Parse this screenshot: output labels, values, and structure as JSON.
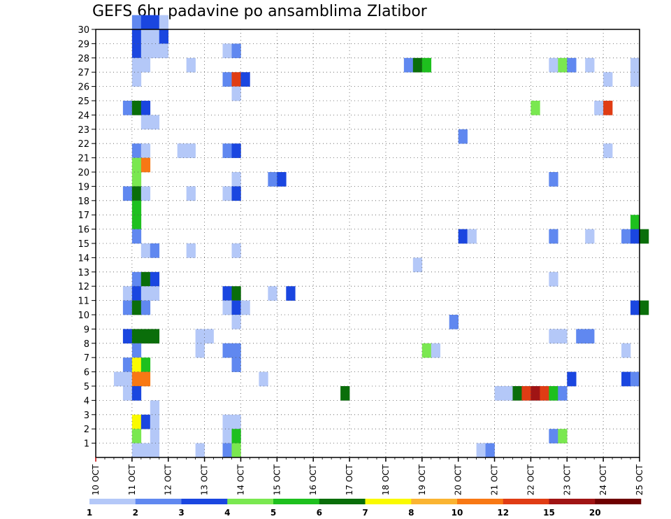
{
  "chart_data": {
    "type": "heatmap",
    "title": "GEFS 6hr padavine po ansamblima Zlatibor",
    "xlabel": "",
    "ylabel": "",
    "x_ticks": [
      "10 OCT",
      "11 OCT",
      "12 OCT",
      "13 OCT",
      "14 OCT",
      "15 OCT",
      "16 OCT",
      "17 OCT",
      "18 OCT",
      "19 OCT",
      "20 OCT",
      "21 OCT",
      "22 OCT",
      "23 OCT",
      "24 OCT",
      "25 OCT"
    ],
    "xlim": [
      "10 OCT 00Z",
      "25 OCT 00Z"
    ],
    "y_ticks": [
      1,
      2,
      3,
      4,
      5,
      6,
      7,
      8,
      9,
      10,
      11,
      12,
      13,
      14,
      15,
      16,
      17,
      18,
      19,
      20,
      21,
      22,
      23,
      24,
      25,
      26,
      27,
      28,
      29,
      30
    ],
    "ylim": [
      0,
      30
    ],
    "grid": true,
    "colorbar": {
      "placement": "bottom",
      "levels": [
        1,
        2,
        3,
        4,
        5,
        6,
        7,
        8,
        10,
        12,
        15,
        20
      ],
      "colors": [
        "#b4c8f8",
        "#6088f0",
        "#1a46e0",
        "#7ae850",
        "#1ec01e",
        "#0a6e0a",
        "#fafa00",
        "#fab432",
        "#f87814",
        "#e03c14",
        "#a01414",
        "#6e0000"
      ]
    },
    "cells": [
      {
        "member": 30,
        "day": "11 OCT",
        "step": 0,
        "value": 2
      },
      {
        "member": 30,
        "day": "11 OCT",
        "step": 1,
        "value": 3
      },
      {
        "member": 30,
        "day": "11 OCT",
        "step": 2,
        "value": 3
      },
      {
        "member": 30,
        "day": "11 OCT",
        "step": 3,
        "value": 1
      },
      {
        "member": 29,
        "day": "11 OCT",
        "step": 0,
        "value": 3
      },
      {
        "member": 29,
        "day": "11 OCT",
        "step": 1,
        "value": 1
      },
      {
        "member": 29,
        "day": "11 OCT",
        "step": 2,
        "value": 1
      },
      {
        "member": 29,
        "day": "11 OCT",
        "step": 3,
        "value": 3
      },
      {
        "member": 28,
        "day": "11 OCT",
        "step": 0,
        "value": 3
      },
      {
        "member": 28,
        "day": "11 OCT",
        "step": 1,
        "value": 1
      },
      {
        "member": 28,
        "day": "11 OCT",
        "step": 2,
        "value": 1
      },
      {
        "member": 28,
        "day": "11 OCT",
        "step": 3,
        "value": 1
      },
      {
        "member": 28,
        "day": "13 OCT",
        "step": 2,
        "value": 1
      },
      {
        "member": 28,
        "day": "13 OCT",
        "step": 3,
        "value": 2
      },
      {
        "member": 27,
        "day": "11 OCT",
        "step": 0,
        "value": 1
      },
      {
        "member": 27,
        "day": "11 OCT",
        "step": 1,
        "value": 1
      },
      {
        "member": 27,
        "day": "12 OCT",
        "step": 2,
        "value": 1
      },
      {
        "member": 27,
        "day": "18 OCT",
        "step": 2,
        "value": 2
      },
      {
        "member": 27,
        "day": "18 OCT",
        "step": 3,
        "value": 6
      },
      {
        "member": 27,
        "day": "19 OCT",
        "step": 0,
        "value": 5
      },
      {
        "member": 27,
        "day": "22 OCT",
        "step": 2,
        "value": 1
      },
      {
        "member": 27,
        "day": "22 OCT",
        "step": 3,
        "value": 4
      },
      {
        "member": 27,
        "day": "23 OCT",
        "step": 0,
        "value": 2
      },
      {
        "member": 27,
        "day": "23 OCT",
        "step": 2,
        "value": 1
      },
      {
        "member": 27,
        "day": "24 OCT",
        "step": 3,
        "value": 1
      },
      {
        "member": 26,
        "day": "11 OCT",
        "step": 0,
        "value": 1
      },
      {
        "member": 26,
        "day": "13 OCT",
        "step": 2,
        "value": 2
      },
      {
        "member": 26,
        "day": "13 OCT",
        "step": 3,
        "value": 12
      },
      {
        "member": 26,
        "day": "14 OCT",
        "step": 0,
        "value": 3
      },
      {
        "member": 26,
        "day": "24 OCT",
        "step": 0,
        "value": 1
      },
      {
        "member": 26,
        "day": "24 OCT",
        "step": 3,
        "value": 1
      },
      {
        "member": 25,
        "day": "13 OCT",
        "step": 3,
        "value": 1
      },
      {
        "member": 24,
        "day": "10 OCT",
        "step": 3,
        "value": 2
      },
      {
        "member": 24,
        "day": "11 OCT",
        "step": 0,
        "value": 6
      },
      {
        "member": 24,
        "day": "11 OCT",
        "step": 1,
        "value": 3
      },
      {
        "member": 24,
        "day": "22 OCT",
        "step": 0,
        "value": 4
      },
      {
        "member": 24,
        "day": "23 OCT",
        "step": 3,
        "value": 1
      },
      {
        "member": 24,
        "day": "24 OCT",
        "step": 0,
        "value": 12
      },
      {
        "member": 23,
        "day": "11 OCT",
        "step": 1,
        "value": 1
      },
      {
        "member": 23,
        "day": "11 OCT",
        "step": 2,
        "value": 1
      },
      {
        "member": 22,
        "day": "20 OCT",
        "step": 0,
        "value": 2
      },
      {
        "member": 21,
        "day": "11 OCT",
        "step": 0,
        "value": 2
      },
      {
        "member": 21,
        "day": "11 OCT",
        "step": 1,
        "value": 1
      },
      {
        "member": 21,
        "day": "12 OCT",
        "step": 1,
        "value": 1
      },
      {
        "member": 21,
        "day": "12 OCT",
        "step": 2,
        "value": 1
      },
      {
        "member": 21,
        "day": "13 OCT",
        "step": 2,
        "value": 2
      },
      {
        "member": 21,
        "day": "13 OCT",
        "step": 3,
        "value": 3
      },
      {
        "member": 21,
        "day": "24 OCT",
        "step": 0,
        "value": 1
      },
      {
        "member": 20,
        "day": "11 OCT",
        "step": 0,
        "value": 4
      },
      {
        "member": 20,
        "day": "11 OCT",
        "step": 1,
        "value": 10
      },
      {
        "member": 19,
        "day": "11 OCT",
        "step": 0,
        "value": 4
      },
      {
        "member": 19,
        "day": "13 OCT",
        "step": 3,
        "value": 1
      },
      {
        "member": 19,
        "day": "14 OCT",
        "step": 3,
        "value": 2
      },
      {
        "member": 19,
        "day": "15 OCT",
        "step": 0,
        "value": 3
      },
      {
        "member": 19,
        "day": "22 OCT",
        "step": 2,
        "value": 2
      },
      {
        "member": 18,
        "day": "10 OCT",
        "step": 3,
        "value": 2
      },
      {
        "member": 18,
        "day": "11 OCT",
        "step": 0,
        "value": 6
      },
      {
        "member": 18,
        "day": "11 OCT",
        "step": 1,
        "value": 1
      },
      {
        "member": 18,
        "day": "12 OCT",
        "step": 2,
        "value": 1
      },
      {
        "member": 18,
        "day": "13 OCT",
        "step": 2,
        "value": 1
      },
      {
        "member": 18,
        "day": "13 OCT",
        "step": 3,
        "value": 3
      },
      {
        "member": 17,
        "day": "11 OCT",
        "step": 0,
        "value": 5
      },
      {
        "member": 16,
        "day": "11 OCT",
        "step": 0,
        "value": 5
      },
      {
        "member": 16,
        "day": "24 OCT",
        "step": 3,
        "value": 5
      },
      {
        "member": 15,
        "day": "11 OCT",
        "step": 0,
        "value": 2
      },
      {
        "member": 15,
        "day": "20 OCT",
        "step": 0,
        "value": 3
      },
      {
        "member": 15,
        "day": "20 OCT",
        "step": 1,
        "value": 1
      },
      {
        "member": 15,
        "day": "22 OCT",
        "step": 2,
        "value": 2
      },
      {
        "member": 15,
        "day": "23 OCT",
        "step": 2,
        "value": 1
      },
      {
        "member": 15,
        "day": "24 OCT",
        "step": 2,
        "value": 2
      },
      {
        "member": 15,
        "day": "24 OCT",
        "step": 3,
        "value": 3
      },
      {
        "member": 15,
        "day": "25 OCT",
        "step": 0,
        "value": 6
      },
      {
        "member": 14,
        "day": "11 OCT",
        "step": 1,
        "value": 1
      },
      {
        "member": 14,
        "day": "11 OCT",
        "step": 2,
        "value": 2
      },
      {
        "member": 14,
        "day": "12 OCT",
        "step": 2,
        "value": 1
      },
      {
        "member": 14,
        "day": "13 OCT",
        "step": 3,
        "value": 1
      },
      {
        "member": 13,
        "day": "18 OCT",
        "step": 3,
        "value": 1
      },
      {
        "member": 12,
        "day": "11 OCT",
        "step": 0,
        "value": 2
      },
      {
        "member": 12,
        "day": "11 OCT",
        "step": 1,
        "value": 6
      },
      {
        "member": 12,
        "day": "11 OCT",
        "step": 2,
        "value": 3
      },
      {
        "member": 12,
        "day": "22 OCT",
        "step": 2,
        "value": 1
      },
      {
        "member": 11,
        "day": "10 OCT",
        "step": 3,
        "value": 1
      },
      {
        "member": 11,
        "day": "11 OCT",
        "step": 0,
        "value": 3
      },
      {
        "member": 11,
        "day": "11 OCT",
        "step": 1,
        "value": 1
      },
      {
        "member": 11,
        "day": "11 OCT",
        "step": 2,
        "value": 1
      },
      {
        "member": 11,
        "day": "13 OCT",
        "step": 2,
        "value": 3
      },
      {
        "member": 11,
        "day": "13 OCT",
        "step": 3,
        "value": 6
      },
      {
        "member": 11,
        "day": "14 OCT",
        "step": 3,
        "value": 1
      },
      {
        "member": 11,
        "day": "15 OCT",
        "step": 1,
        "value": 3
      },
      {
        "member": 10,
        "day": "10 OCT",
        "step": 3,
        "value": 2
      },
      {
        "member": 10,
        "day": "11 OCT",
        "step": 0,
        "value": 6
      },
      {
        "member": 10,
        "day": "11 OCT",
        "step": 1,
        "value": 2
      },
      {
        "member": 10,
        "day": "13 OCT",
        "step": 2,
        "value": 1
      },
      {
        "member": 10,
        "day": "13 OCT",
        "step": 3,
        "value": 3
      },
      {
        "member": 10,
        "day": "14 OCT",
        "step": 0,
        "value": 1
      },
      {
        "member": 10,
        "day": "24 OCT",
        "step": 3,
        "value": 3
      },
      {
        "member": 10,
        "day": "25 OCT",
        "step": 0,
        "value": 6
      },
      {
        "member": 9,
        "day": "13 OCT",
        "step": 3,
        "value": 1
      },
      {
        "member": 9,
        "day": "19 OCT",
        "step": 3,
        "value": 2
      },
      {
        "member": 8,
        "day": "10 OCT",
        "step": 3,
        "value": 3
      },
      {
        "member": 8,
        "day": "11 OCT",
        "step": 0,
        "value": 6
      },
      {
        "member": 8,
        "day": "11 OCT",
        "step": 1,
        "value": 6
      },
      {
        "member": 8,
        "day": "11 OCT",
        "step": 2,
        "value": 6
      },
      {
        "member": 8,
        "day": "12 OCT",
        "step": 3,
        "value": 1
      },
      {
        "member": 8,
        "day": "13 OCT",
        "step": 0,
        "value": 1
      },
      {
        "member": 8,
        "day": "22 OCT",
        "step": 2,
        "value": 1
      },
      {
        "member": 8,
        "day": "22 OCT",
        "step": 3,
        "value": 1
      },
      {
        "member": 8,
        "day": "23 OCT",
        "step": 1,
        "value": 2
      },
      {
        "member": 8,
        "day": "23 OCT",
        "step": 2,
        "value": 2
      },
      {
        "member": 7,
        "day": "11 OCT",
        "step": 0,
        "value": 2
      },
      {
        "member": 7,
        "day": "12 OCT",
        "step": 3,
        "value": 1
      },
      {
        "member": 7,
        "day": "13 OCT",
        "step": 2,
        "value": 2
      },
      {
        "member": 7,
        "day": "13 OCT",
        "step": 3,
        "value": 2
      },
      {
        "member": 7,
        "day": "19 OCT",
        "step": 0,
        "value": 4
      },
      {
        "member": 7,
        "day": "19 OCT",
        "step": 1,
        "value": 1
      },
      {
        "member": 7,
        "day": "24 OCT",
        "step": 2,
        "value": 1
      },
      {
        "member": 6,
        "day": "10 OCT",
        "step": 3,
        "value": 2
      },
      {
        "member": 6,
        "day": "11 OCT",
        "step": 0,
        "value": 7
      },
      {
        "member": 6,
        "day": "11 OCT",
        "step": 1,
        "value": 5
      },
      {
        "member": 6,
        "day": "13 OCT",
        "step": 3,
        "value": 2
      },
      {
        "member": 5,
        "day": "10 OCT",
        "step": 2,
        "value": 1
      },
      {
        "member": 5,
        "day": "10 OCT",
        "step": 3,
        "value": 1
      },
      {
        "member": 5,
        "day": "11 OCT",
        "step": 0,
        "value": 10
      },
      {
        "member": 5,
        "day": "11 OCT",
        "step": 1,
        "value": 10
      },
      {
        "member": 5,
        "day": "14 OCT",
        "step": 2,
        "value": 1
      },
      {
        "member": 5,
        "day": "23 OCT",
        "step": 0,
        "value": 3
      },
      {
        "member": 5,
        "day": "24 OCT",
        "step": 2,
        "value": 3
      },
      {
        "member": 5,
        "day": "24 OCT",
        "step": 3,
        "value": 2
      },
      {
        "member": 4,
        "day": "10 OCT",
        "step": 3,
        "value": 1
      },
      {
        "member": 4,
        "day": "11 OCT",
        "step": 0,
        "value": 3
      },
      {
        "member": 4,
        "day": "16 OCT",
        "step": 3,
        "value": 6
      },
      {
        "member": 4,
        "day": "21 OCT",
        "step": 0,
        "value": 1
      },
      {
        "member": 4,
        "day": "21 OCT",
        "step": 1,
        "value": 1
      },
      {
        "member": 4,
        "day": "21 OCT",
        "step": 2,
        "value": 6
      },
      {
        "member": 4,
        "day": "21 OCT",
        "step": 3,
        "value": 12
      },
      {
        "member": 4,
        "day": "22 OCT",
        "step": 0,
        "value": 15
      },
      {
        "member": 4,
        "day": "22 OCT",
        "step": 1,
        "value": 12
      },
      {
        "member": 4,
        "day": "22 OCT",
        "step": 2,
        "value": 5
      },
      {
        "member": 4,
        "day": "22 OCT",
        "step": 3,
        "value": 2
      },
      {
        "member": 3,
        "day": "11 OCT",
        "step": 2,
        "value": 1
      },
      {
        "member": 2,
        "day": "11 OCT",
        "step": 0,
        "value": 7
      },
      {
        "member": 2,
        "day": "11 OCT",
        "step": 1,
        "value": 3
      },
      {
        "member": 2,
        "day": "11 OCT",
        "step": 2,
        "value": 1
      },
      {
        "member": 2,
        "day": "13 OCT",
        "step": 2,
        "value": 1
      },
      {
        "member": 2,
        "day": "13 OCT",
        "step": 3,
        "value": 1
      },
      {
        "member": 1,
        "day": "11 OCT",
        "step": 0,
        "value": 4
      },
      {
        "member": 1,
        "day": "11 OCT",
        "step": 2,
        "value": 1
      },
      {
        "member": 1,
        "day": "13 OCT",
        "step": 2,
        "value": 1
      },
      {
        "member": 1,
        "day": "13 OCT",
        "step": 3,
        "value": 5
      },
      {
        "member": 1,
        "day": "22 OCT",
        "step": 2,
        "value": 2
      },
      {
        "member": 1,
        "day": "22 OCT",
        "step": 3,
        "value": 4
      },
      {
        "member": 0,
        "day": "11 OCT",
        "step": 0,
        "value": 1
      },
      {
        "member": 0,
        "day": "11 OCT",
        "step": 1,
        "value": 1
      },
      {
        "member": 0,
        "day": "11 OCT",
        "step": 2,
        "value": 1
      },
      {
        "member": 0,
        "day": "12 OCT",
        "step": 3,
        "value": 1
      },
      {
        "member": 0,
        "day": "13 OCT",
        "step": 2,
        "value": 2
      },
      {
        "member": 0,
        "day": "13 OCT",
        "step": 3,
        "value": 4
      },
      {
        "member": 0,
        "day": "20 OCT",
        "step": 2,
        "value": 1
      },
      {
        "member": 0,
        "day": "20 OCT",
        "step": 3,
        "value": 2
      }
    ]
  }
}
